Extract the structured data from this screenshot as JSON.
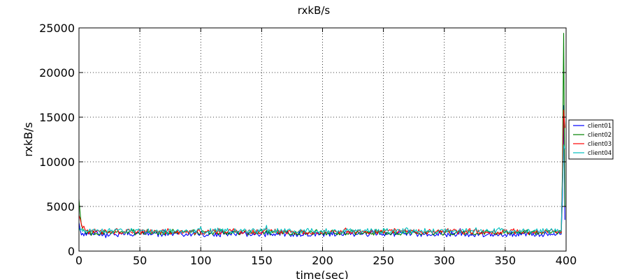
{
  "chart_data": {
    "type": "line",
    "title": "rxkB/s",
    "xlabel": "time(sec)",
    "ylabel": "rxkB/s",
    "xlim": [
      0,
      400
    ],
    "ylim": [
      0,
      25000
    ],
    "xticks": [
      0,
      50,
      100,
      150,
      200,
      250,
      300,
      350,
      400
    ],
    "yticks": [
      0,
      5000,
      10000,
      15000,
      20000,
      25000
    ],
    "grid": true,
    "legend_position": "right",
    "series": [
      {
        "name": "client01",
        "color": "#0000ff",
        "base": 1900,
        "amp": 300,
        "seed": 1,
        "points": [
          [
            0,
            3200
          ],
          [
            1,
            2400
          ],
          [
            2,
            1800
          ],
          [
            3,
            2000
          ],
          [
            4,
            1700
          ],
          [
            5,
            2100
          ],
          [
            396,
            1900
          ],
          [
            397,
            6000
          ],
          [
            398,
            16300
          ],
          [
            399,
            3500
          ]
        ]
      },
      {
        "name": "client02",
        "color": "#008000",
        "base": 2050,
        "amp": 260,
        "seed": 2,
        "points": [
          [
            0,
            5800
          ],
          [
            1,
            4200
          ],
          [
            2,
            2900
          ],
          [
            3,
            2500
          ],
          [
            4,
            2300
          ],
          [
            5,
            2200
          ],
          [
            396,
            2000
          ],
          [
            397,
            9000
          ],
          [
            398,
            24400
          ],
          [
            399,
            5000
          ]
        ]
      },
      {
        "name": "client03",
        "color": "#ff0000",
        "base": 2150,
        "amp": 280,
        "seed": 3,
        "points": [
          [
            0,
            4000
          ],
          [
            1,
            3600
          ],
          [
            2,
            3000
          ],
          [
            3,
            2600
          ],
          [
            4,
            2800
          ],
          [
            5,
            2400
          ],
          [
            396,
            2100
          ],
          [
            397,
            8000
          ],
          [
            398,
            15800
          ],
          [
            399,
            13800
          ]
        ]
      },
      {
        "name": "client04",
        "color": "#00bfbf",
        "base": 2250,
        "amp": 300,
        "seed": 4,
        "points": [
          [
            0,
            2600
          ],
          [
            1,
            2300
          ],
          [
            2,
            2500
          ],
          [
            3,
            2200
          ],
          [
            4,
            2400
          ],
          [
            5,
            2100
          ],
          [
            396,
            2300
          ],
          [
            397,
            7000
          ],
          [
            398,
            11900
          ],
          [
            399,
            11400
          ]
        ]
      }
    ]
  }
}
